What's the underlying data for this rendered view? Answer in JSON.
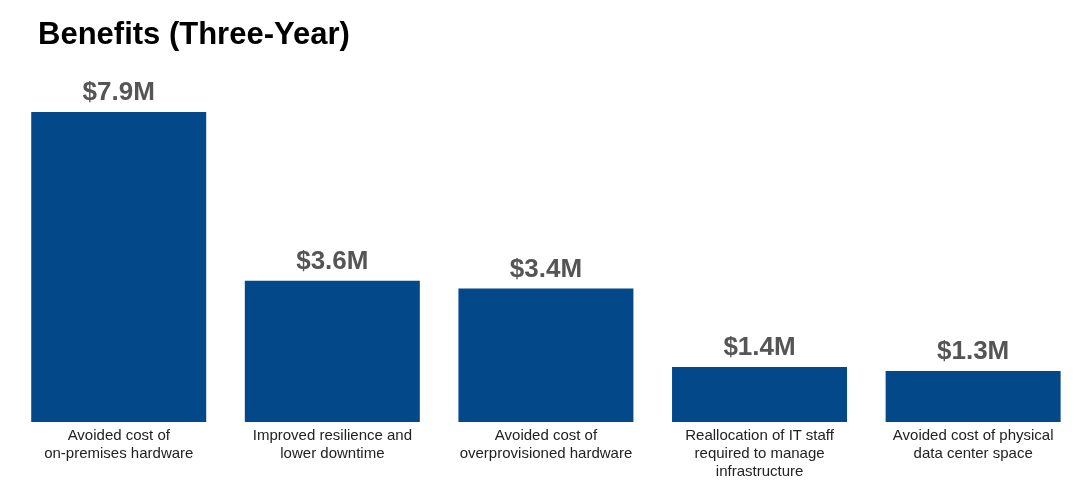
{
  "chart_data": {
    "type": "bar",
    "title": "Benefits (Three-Year)",
    "categories": [
      "Avoided cost of on-premises hardware",
      "Improved resilience and lower downtime",
      "Avoided cost of overprovisioned hardware",
      "Reallocation of IT staff required to manage infrastructure",
      "Avoided cost of physical data center space"
    ],
    "values": [
      7.9,
      3.6,
      3.4,
      1.4,
      1.3
    ],
    "value_labels": [
      "$7.9M",
      "$3.6M",
      "$3.4M",
      "$1.4M",
      "$1.3M"
    ],
    "color": "#03498a",
    "legend": false,
    "grid": false
  }
}
